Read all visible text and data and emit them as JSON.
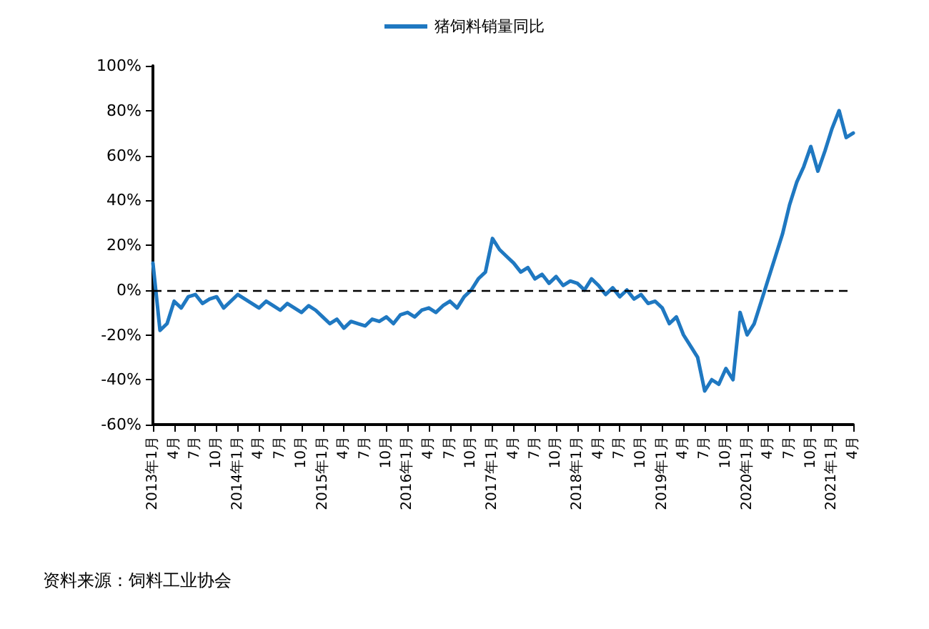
{
  "chart_data": {
    "type": "line",
    "categories": [
      "2013年1月",
      null,
      null,
      "4月",
      null,
      null,
      "7月",
      null,
      null,
      "10月",
      null,
      null,
      "2014年1月",
      null,
      null,
      "4月",
      null,
      null,
      "7月",
      null,
      null,
      "10月",
      null,
      null,
      "2015年1月",
      null,
      null,
      "4月",
      null,
      null,
      "7月",
      null,
      null,
      "10月",
      null,
      null,
      "2016年1月",
      null,
      null,
      "4月",
      null,
      null,
      "7月",
      null,
      null,
      "10月",
      null,
      null,
      "2017年1月",
      null,
      null,
      "4月",
      null,
      null,
      "7月",
      null,
      null,
      "10月",
      null,
      null,
      "2018年1月",
      null,
      null,
      "4月",
      null,
      null,
      "7月",
      null,
      null,
      "10月",
      null,
      null,
      "2019年1月",
      null,
      null,
      "4月",
      null,
      null,
      "7月",
      null,
      null,
      "10月",
      null,
      null,
      "2020年1月",
      null,
      null,
      "4月",
      null,
      null,
      "7月",
      null,
      null,
      "10月",
      null,
      null,
      "2021年1月",
      null,
      null,
      "4月"
    ],
    "series": [
      {
        "name": "猪饲料销量同比",
        "color": "#1f78c1",
        "values": [
          12,
          -18,
          -15,
          -5,
          -8,
          -3,
          -2,
          -6,
          -4,
          -3,
          -8,
          -5,
          -2,
          -4,
          -6,
          -8,
          -5,
          -7,
          -9,
          -6,
          -8,
          -10,
          -7,
          -9,
          -12,
          -15,
          -13,
          -17,
          -14,
          -15,
          -16,
          -13,
          -14,
          -12,
          -15,
          -11,
          -10,
          -12,
          -9,
          -8,
          -10,
          -7,
          -5,
          -8,
          -3,
          0,
          5,
          8,
          23,
          18,
          15,
          12,
          8,
          10,
          5,
          7,
          3,
          6,
          2,
          4,
          3,
          0,
          5,
          2,
          -2,
          1,
          -3,
          0,
          -4,
          -2,
          -6,
          -5,
          -8,
          -15,
          -12,
          -20,
          -25,
          -30,
          -45,
          -40,
          -42,
          -35,
          -40,
          -10,
          -20,
          -15,
          -5,
          5,
          15,
          25,
          38,
          48,
          55,
          64,
          53,
          62,
          72,
          80,
          68,
          70
        ]
      }
    ],
    "ylim": [
      -60,
      100
    ],
    "yticks": [
      {
        "value": -60,
        "label": "-60%"
      },
      {
        "value": -40,
        "label": "-40%"
      },
      {
        "value": -20,
        "label": "-20%"
      },
      {
        "value": 0,
        "label": "0%"
      },
      {
        "value": 20,
        "label": "20%"
      },
      {
        "value": 40,
        "label": "40%"
      },
      {
        "value": 60,
        "label": "60%"
      },
      {
        "value": 80,
        "label": "80%"
      },
      {
        "value": 100,
        "label": "100%"
      }
    ],
    "ref_lines": [
      {
        "axis": "y",
        "value": 0,
        "color": "#000000",
        "line_style": "dashed"
      }
    ],
    "legend": "top",
    "marker": "none",
    "line_style": "solid",
    "grid": false,
    "annotations": [
      "资料来源：饲料工业协会"
    ]
  }
}
